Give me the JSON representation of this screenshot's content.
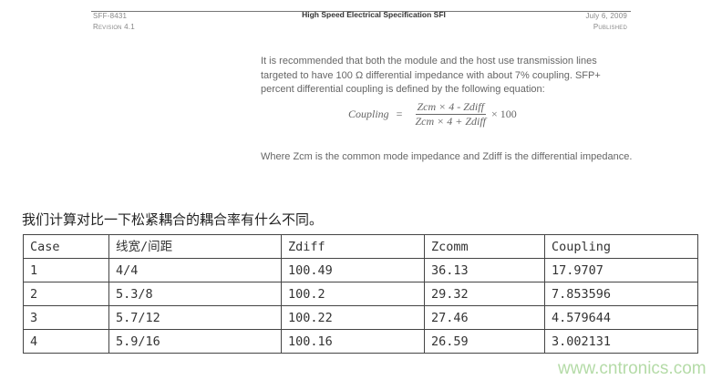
{
  "header": {
    "doc_id": "SFF-8431",
    "revision": "Revision 4.1",
    "title": "High Speed Electrical Specification SFI",
    "date": "July 6, 2009",
    "status": "Published"
  },
  "body": {
    "paragraph1": "It is recommended that both the module and the host use transmission lines targeted to have 100 Ω differential impedance with about 7% coupling. SFP+ percent differential coupling is defined by the following equation:",
    "equation": {
      "lhs": "Coupling",
      "equals": "=",
      "numerator": "Zcm × 4 - Zdiff",
      "denominator": "Zcm × 4 + Zdiff",
      "multiplier": "× 100"
    },
    "paragraph2": "Where Zcm is the common mode impedance and Zdiff is the differential impedance."
  },
  "caption": "我们计算对比一下松紧耦合的耦合率有什么不同。",
  "table": {
    "headers": [
      "Case",
      "线宽/间距",
      "Zdiff",
      "Zcomm",
      "Coupling"
    ],
    "rows": [
      [
        "1",
        "4/4",
        "100.49",
        "36.13",
        "17.9707"
      ],
      [
        "2",
        "5.3/8",
        "100.2",
        "29.32",
        "7.853596"
      ],
      [
        "3",
        "5.7/12",
        "100.22",
        "27.46",
        "4.579644"
      ],
      [
        "4",
        "5.9/16",
        "100.16",
        "26.59",
        "3.002131"
      ]
    ]
  },
  "watermark": "www.cntronics.com"
}
